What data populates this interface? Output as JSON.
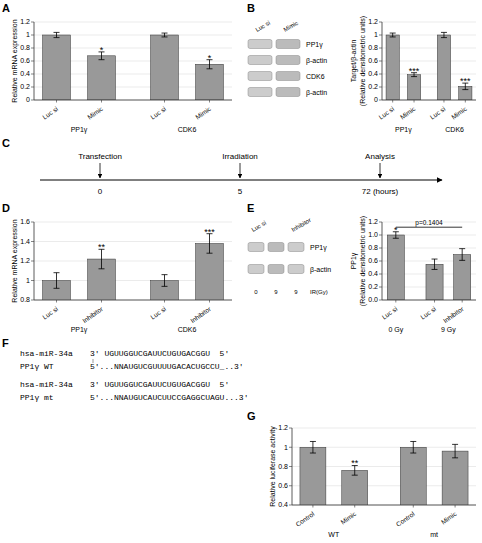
{
  "chart_data": [
    {
      "type": "bar",
      "title": "A",
      "categories": [
        "Luc si",
        "Mimic",
        "Luc si",
        "Mimic"
      ],
      "groups": [
        "PP1γ",
        "PP1γ",
        "CDK6",
        "CDK6"
      ],
      "values": [
        1.0,
        0.68,
        1.0,
        0.55
      ],
      "errors": [
        0.04,
        0.06,
        0.03,
        0.07
      ],
      "significance": [
        null,
        "*",
        null,
        "*"
      ],
      "ylabel": "Relative mRNA expression",
      "ylim": [
        0,
        1.2
      ],
      "yticks": [
        0,
        0.2,
        0.4,
        0.6,
        0.8,
        1,
        1.2
      ],
      "color": "#999999",
      "grid": true
    },
    {
      "type": "bar",
      "title": "B",
      "categories": [
        "Luc si",
        "Mimic",
        "Luc si",
        "Mimic"
      ],
      "groups": [
        "PP1γ",
        "PP1γ",
        "CDK6",
        "CDK6"
      ],
      "values": [
        1.0,
        0.39,
        1.0,
        0.21
      ],
      "errors": [
        0.03,
        0.03,
        0.04,
        0.05
      ],
      "significance": [
        null,
        "***",
        null,
        "***"
      ],
      "ylabel": "Target/β-actin\n(Relative densitometric units)",
      "ylim": [
        0,
        1.2
      ],
      "yticks": [
        0,
        0.2,
        0.4,
        0.6,
        0.8,
        1,
        1.2
      ],
      "color": "#999999",
      "grid": true,
      "annotations": {
        "blot_rows": [
          "PP1γ",
          "β-actin",
          "CDK6",
          "β-actin"
        ],
        "blot_columns": [
          "Luc si",
          "Mimic"
        ]
      }
    },
    {
      "type": "timeline",
      "title": "C",
      "categories": [
        "0",
        "5",
        "72 (hours)"
      ],
      "annotations": [
        "Transfection",
        "Irradiation",
        "Analysis"
      ]
    },
    {
      "type": "bar",
      "title": "D",
      "categories": [
        "Luc si",
        "Inhibitor",
        "Luc si",
        "Inhibitor"
      ],
      "groups": [
        "PP1γ",
        "PP1γ",
        "CDK6",
        "CDK6"
      ],
      "values": [
        1.0,
        1.22,
        1.0,
        1.38
      ],
      "errors": [
        0.08,
        0.1,
        0.06,
        0.1
      ],
      "significance": [
        null,
        "**",
        null,
        "***"
      ],
      "ylabel": "Relative mRNA expression",
      "ylim": [
        0.8,
        1.6
      ],
      "yticks": [
        0.8,
        1,
        1.2,
        1.4,
        1.6
      ],
      "color": "#999999",
      "grid": true
    },
    {
      "type": "bar",
      "title": "E",
      "categories": [
        "Luc si",
        "Luc si",
        "Inhibitor"
      ],
      "groups": [
        "0 Gy",
        "9 Gy",
        "9 Gy"
      ],
      "values": [
        1.0,
        0.55,
        0.7
      ],
      "errors": [
        0.05,
        0.08,
        0.09
      ],
      "significance": [
        "*",
        null,
        null
      ],
      "bracket": {
        "label": "p=0.1404",
        "y": 1.12
      },
      "ylabel": "PP1γ\n(Relative densitometric units)",
      "ylim": [
        0,
        1.2
      ],
      "yticks": [
        {
          "value": 0,
          "label": "0.0"
        },
        {
          "value": 0.2,
          "label": "0.2"
        },
        {
          "value": 0.4,
          "label": "0.4"
        },
        {
          "value": 0.6,
          "label": "0.6"
        },
        {
          "value": 0.8,
          "label": "0.8"
        },
        {
          "value": 1,
          "label": "1.0"
        },
        {
          "value": 1.2,
          "label": "1.2"
        }
      ],
      "color": "#999999",
      "grid": true,
      "annotations": {
        "blot_rows": [
          "PP1γ",
          "β-actin"
        ],
        "blot_columns": [
          "Luc si",
          "Inhibitor"
        ],
        "blot_dose_label": "IR(Gy)",
        "blot_doses": [
          "0",
          "9",
          "9"
        ]
      }
    },
    {
      "type": "text",
      "title": "F",
      "annotations": [
        [
          [
            "hsa-miR-34a",
            "3' UGUUGGUCGAUUCUGUGACGGU  5'"
          ],
          [
            "PP1γ WT",
            "5'...NNAUGUCGUUUUGACACUGCCU_..3'"
          ]
        ],
        [
          [
            "hsa-miR-34a",
            "3' UGUUGGUCGAUUCUGUGACGGU  5'"
          ],
          [
            "PP1γ mt",
            "5'...NNAUGUCAUCUUCCGAGGCUAGU...3'"
          ]
        ]
      ]
    },
    {
      "type": "bar",
      "title": "G",
      "categories": [
        "Control",
        "Mimic",
        "Control",
        "Mimic"
      ],
      "groups": [
        "WT",
        "WT",
        "mt",
        "mt"
      ],
      "values": [
        1.0,
        0.76,
        1.0,
        0.96
      ],
      "errors": [
        0.06,
        0.05,
        0.06,
        0.07
      ],
      "significance": [
        null,
        "**",
        null,
        null
      ],
      "ylabel": "Relative luciferase activity",
      "ylim": [
        0.4,
        1.2
      ],
      "yticks": [
        0.4,
        0.6,
        0.8,
        1,
        1.2
      ],
      "color": "#999999",
      "grid": true
    }
  ]
}
